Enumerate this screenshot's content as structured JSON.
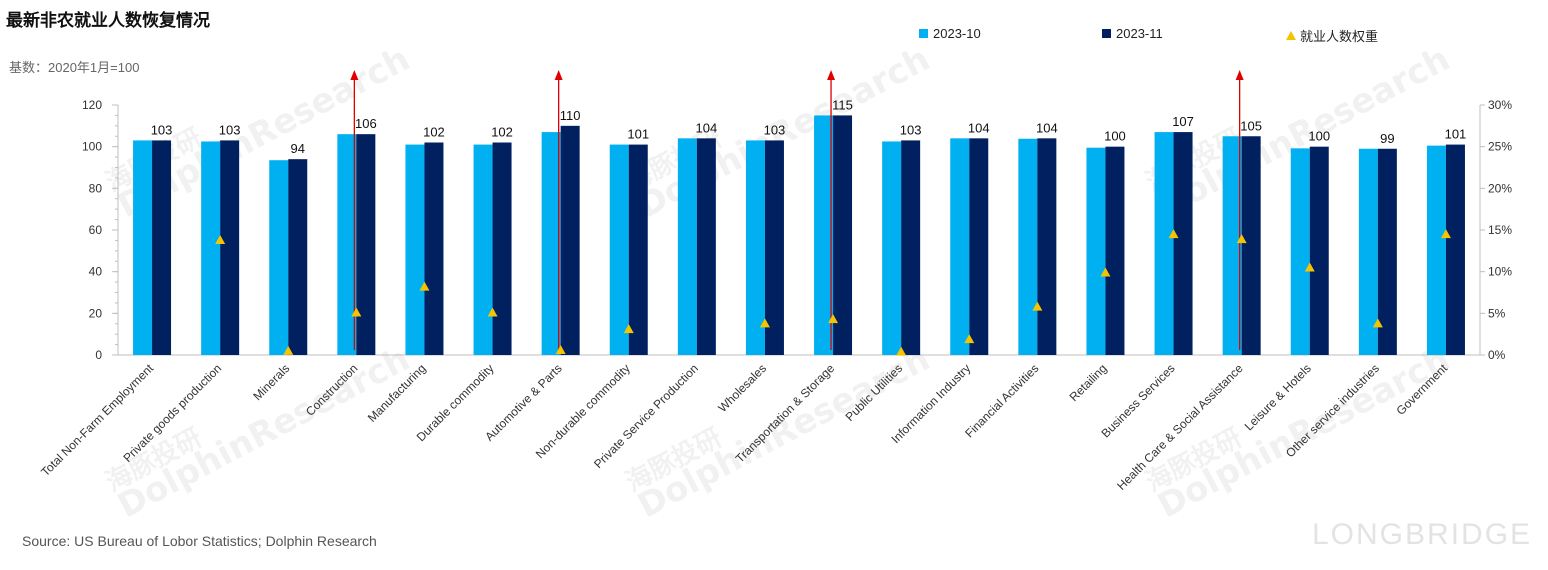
{
  "title": "最新非农就业人数恢复情况",
  "subtitle": "基数：2020年1月=100",
  "source": "Source: US Bureau of Lobor Statistics; Dolphin Research",
  "brand": "LONGBRIDGE",
  "watermark": {
    "cn": "海豚投研",
    "en": "DolphinResearch"
  },
  "legend": {
    "s1": "2023-10",
    "s2": "2023-11",
    "s3": "就业人数权重"
  },
  "colors": {
    "s1": "#00b0f0",
    "s2": "#002060",
    "s3": "#f5c400",
    "arrow": "#e00000",
    "axis": "#bfbfbf"
  },
  "chart_data": {
    "type": "bar",
    "categories": [
      "Total Non-Farm Employment",
      "Private goods production",
      "Minerals",
      "Construction",
      "Manufacturing",
      "Durable commodity",
      "Automotive & Parts",
      "Non-durable commodity",
      "Private Service Production",
      "Wholesales",
      "Transportation & Storage",
      "Public Utilities",
      "Information Industry",
      "Financial Activities",
      "Retailing",
      "Business Services",
      "Health Care & Social Assistance",
      "Leisure & Hotels",
      "Other service industries",
      "Government"
    ],
    "series": [
      {
        "name": "2023-10",
        "values": [
          103,
          102.5,
          93.5,
          106,
          101,
          101,
          107,
          101,
          104,
          103,
          115,
          102.5,
          104,
          103.8,
          99.5,
          107,
          105,
          99.2,
          99,
          100.5
        ]
      },
      {
        "name": "2023-11",
        "values": [
          103,
          103,
          94,
          106,
          102,
          102,
          110,
          101,
          104,
          103,
          115,
          103,
          104,
          104,
          100,
          107,
          105,
          100,
          99,
          101
        ]
      },
      {
        "name": "就业人数权重",
        "axis": "right",
        "values": [
          null,
          13.8,
          0.5,
          5.1,
          8.2,
          5.1,
          0.6,
          3.1,
          null,
          3.8,
          4.3,
          0.4,
          1.9,
          5.8,
          9.9,
          14.5,
          13.9,
          10.5,
          3.8,
          14.5
        ]
      }
    ],
    "data_labels": [
      103,
      103,
      94,
      106,
      102,
      102,
      110,
      101,
      104,
      103,
      115,
      103,
      104,
      104,
      100,
      107,
      105,
      100,
      99,
      101
    ],
    "arrows_on": [
      "Construction",
      "Automotive & Parts",
      "Transportation & Storage",
      "Health Care & Social Assistance"
    ],
    "ylim": [
      0,
      120
    ],
    "yticks": [
      0,
      20,
      40,
      60,
      80,
      100,
      120
    ],
    "y2lim": [
      0,
      30
    ],
    "y2ticks": [
      "0%",
      "5%",
      "10%",
      "15%",
      "20%",
      "25%",
      "30%"
    ],
    "grid": false,
    "legend_position": "top-right"
  }
}
